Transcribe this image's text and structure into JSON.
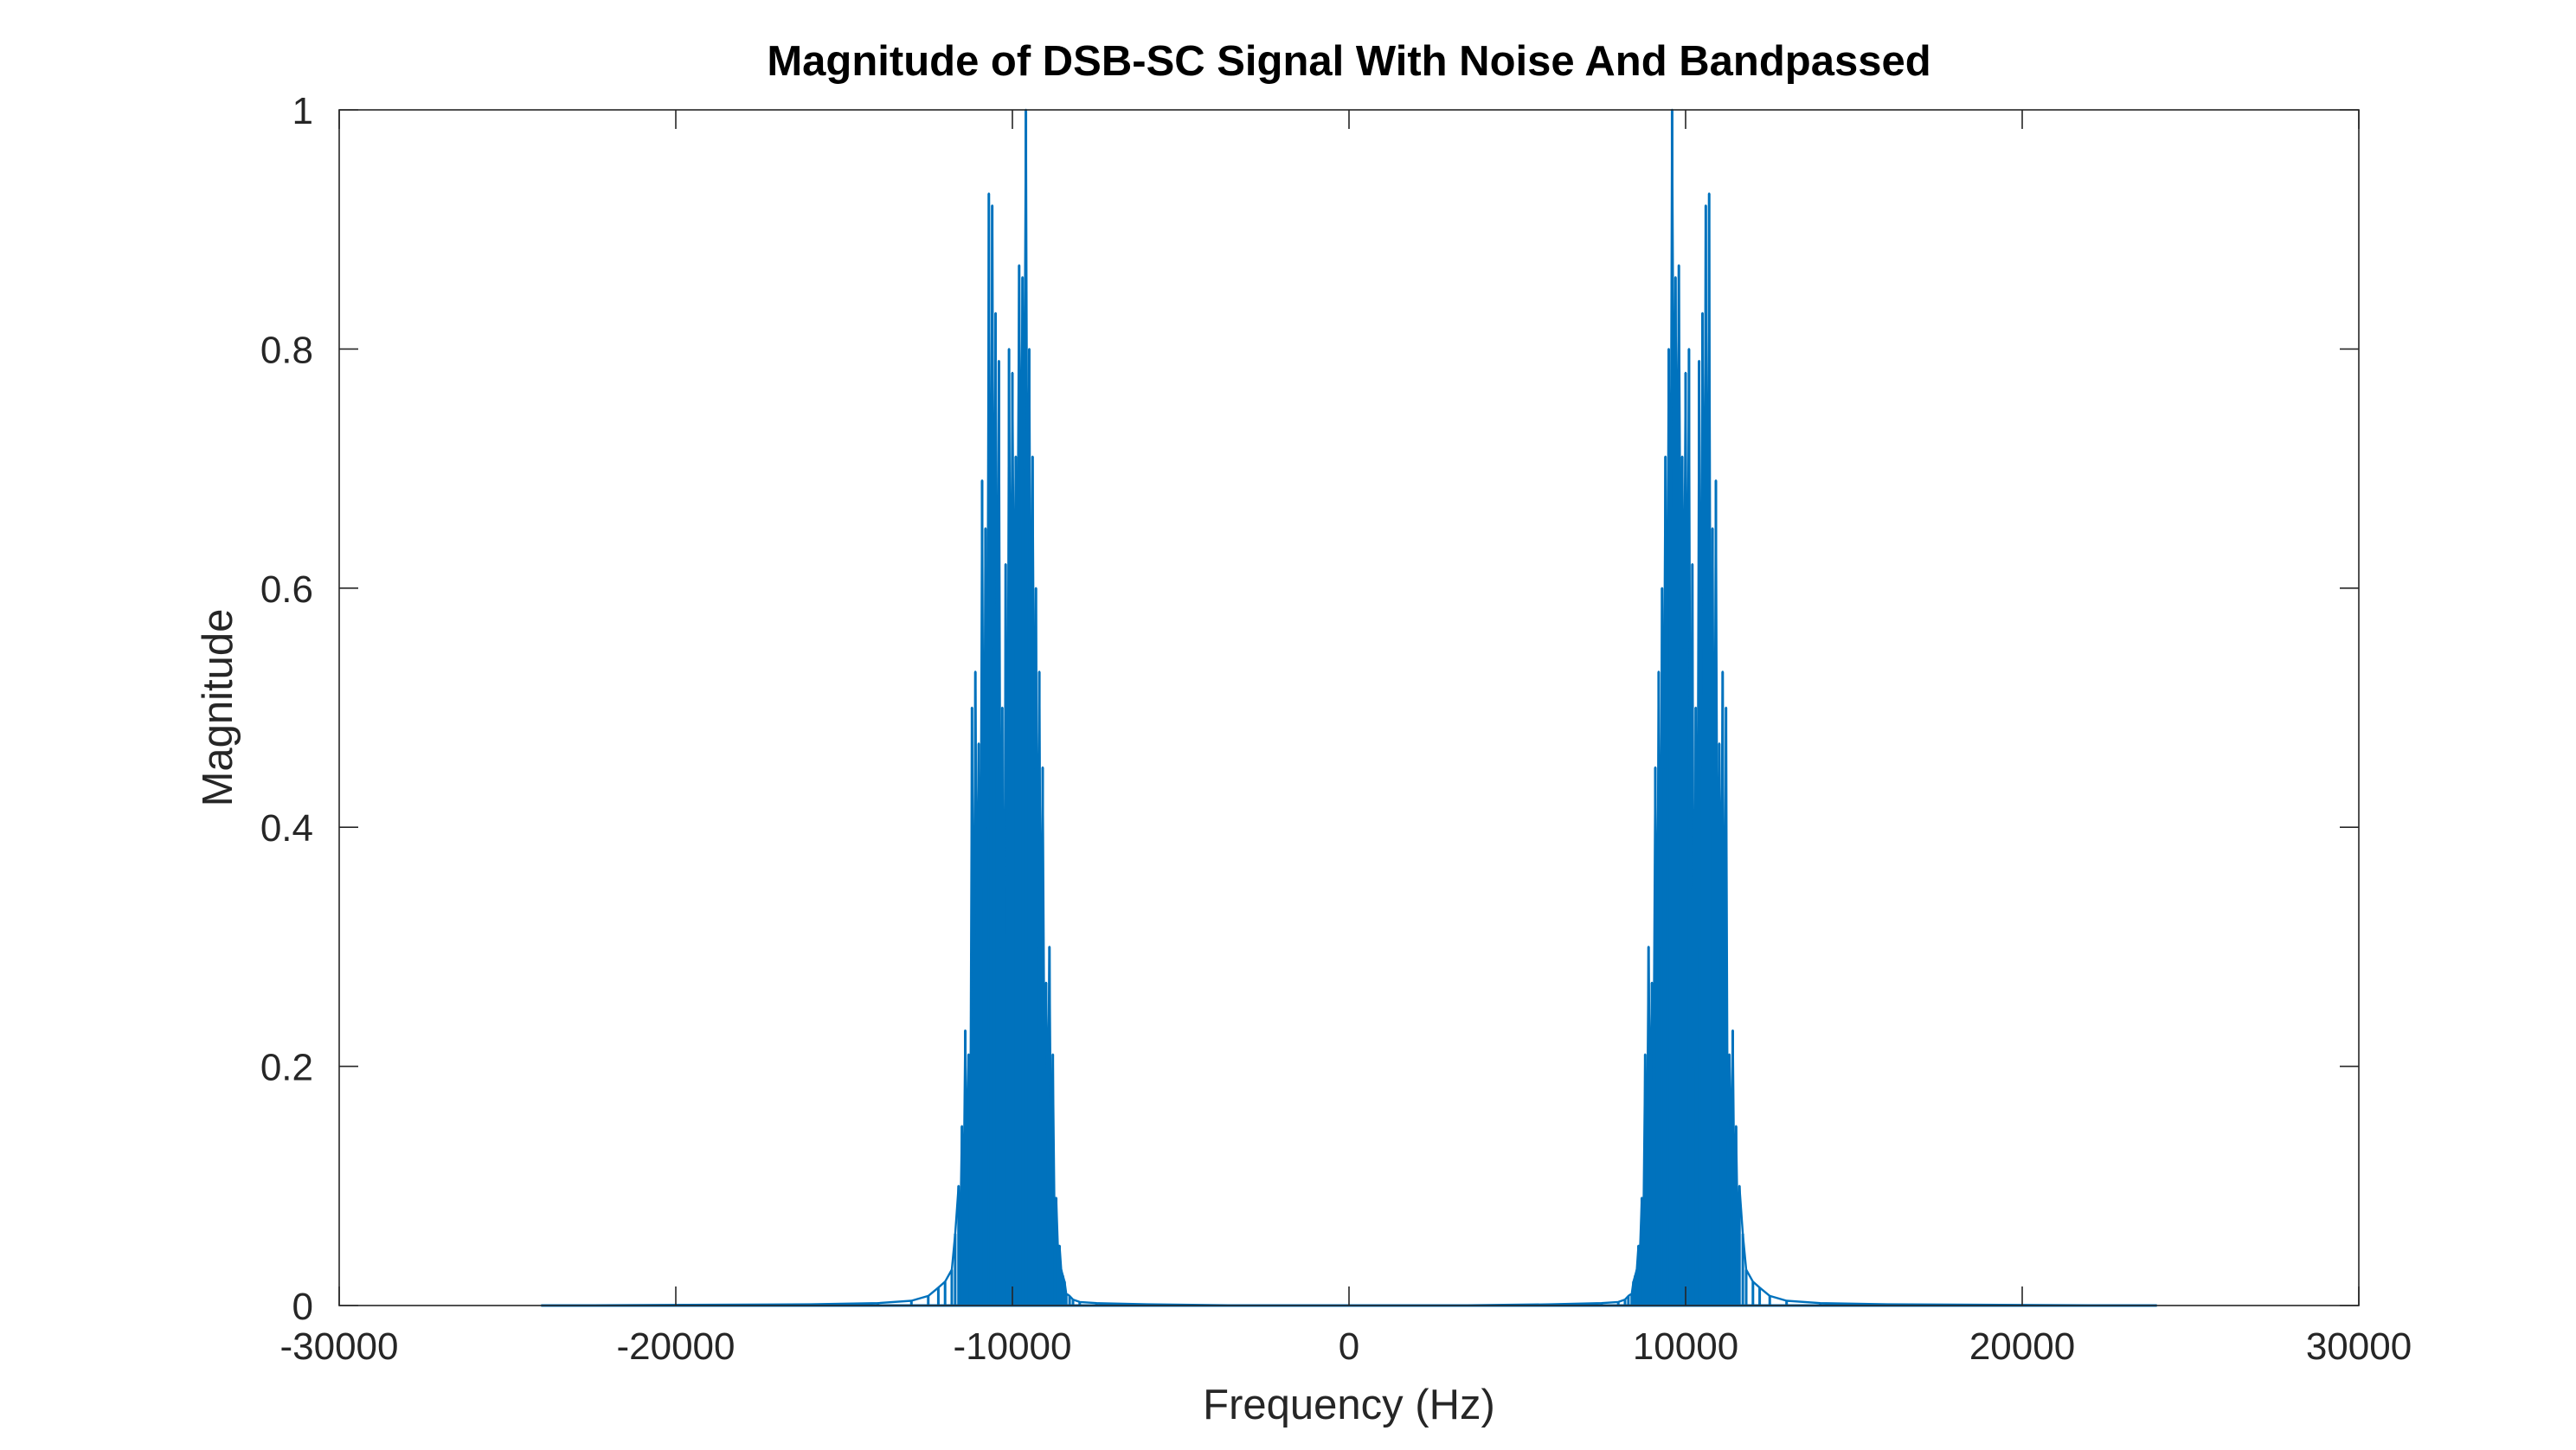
{
  "chart_data": {
    "type": "line",
    "title": "Magnitude of DSB-SC Signal With Noise And Bandpassed",
    "xlabel": "Frequency (Hz)",
    "ylabel": "Magnitude",
    "xlim": [
      -30000,
      30000
    ],
    "ylim": [
      0,
      1
    ],
    "xticks": [
      -30000,
      -20000,
      -10000,
      0,
      10000,
      20000,
      30000
    ],
    "xtick_labels": [
      "-30000",
      "-20000",
      "-10000",
      "0",
      "10000",
      "20000",
      "30000"
    ],
    "yticks": [
      0,
      0.2,
      0.4,
      0.6,
      0.8,
      1
    ],
    "ytick_labels": [
      "0",
      "0.2",
      "0.4",
      "0.6",
      "0.8",
      "1"
    ],
    "grid": false,
    "box": true,
    "series": [
      {
        "color": "#0072bd",
        "x": [
          -24000,
          -16000,
          -14000,
          -13000,
          -12500,
          -12200,
          -12000,
          -11800,
          -11700,
          -11600,
          -11550,
          -11500,
          -11450,
          -11400,
          -11350,
          -11300,
          -11250,
          -11200,
          -11150,
          -11100,
          -11050,
          -11000,
          -10950,
          -10900,
          -10850,
          -10800,
          -10750,
          -10700,
          -10650,
          -10600,
          -10550,
          -10500,
          -10450,
          -10400,
          -10350,
          -10300,
          -10250,
          -10200,
          -10150,
          -10100,
          -10050,
          -10000,
          -9950,
          -9900,
          -9850,
          -9800,
          -9750,
          -9700,
          -9650,
          -9600,
          -9550,
          -9500,
          -9450,
          -9400,
          -9350,
          -9300,
          -9250,
          -9200,
          -9150,
          -9100,
          -9050,
          -9000,
          -8950,
          -8900,
          -8850,
          -8800,
          -8750,
          -8700,
          -8650,
          -8600,
          -8550,
          -8500,
          -8450,
          -8400,
          -8300,
          -8200,
          -8000,
          -7500,
          -6000,
          -3000,
          0,
          3000,
          6000,
          7500,
          8000,
          8200,
          8300,
          8400,
          8450,
          8500,
          8550,
          8600,
          8650,
          8700,
          8750,
          8800,
          8850,
          8900,
          8950,
          9000,
          9050,
          9100,
          9150,
          9200,
          9250,
          9300,
          9350,
          9400,
          9450,
          9500,
          9550,
          9600,
          9650,
          9700,
          9750,
          9800,
          9850,
          9900,
          9950,
          10000,
          10050,
          10100,
          10150,
          10200,
          10250,
          10300,
          10350,
          10400,
          10450,
          10500,
          10550,
          10600,
          10650,
          10700,
          10750,
          10800,
          10850,
          10900,
          10950,
          11000,
          11050,
          11100,
          11150,
          11200,
          11250,
          11300,
          11350,
          11400,
          11450,
          11500,
          11550,
          11600,
          11700,
          11800,
          12000,
          12200,
          12500,
          13000,
          14000,
          16000,
          24000
        ],
        "y": [
          0.0,
          0.001,
          0.002,
          0.004,
          0.008,
          0.015,
          0.02,
          0.03,
          0.06,
          0.1,
          0.06,
          0.15,
          0.09,
          0.23,
          0.12,
          0.21,
          0.14,
          0.5,
          0.22,
          0.53,
          0.3,
          0.47,
          0.28,
          0.69,
          0.35,
          0.65,
          0.4,
          0.93,
          0.5,
          0.92,
          0.55,
          0.83,
          0.45,
          0.79,
          0.3,
          0.5,
          0.2,
          0.62,
          0.35,
          0.8,
          0.5,
          0.78,
          0.55,
          0.71,
          0.6,
          0.87,
          0.65,
          0.86,
          0.7,
          1.0,
          0.6,
          0.8,
          0.5,
          0.71,
          0.45,
          0.6,
          0.3,
          0.53,
          0.25,
          0.45,
          0.2,
          0.27,
          0.15,
          0.3,
          0.12,
          0.21,
          0.08,
          0.09,
          0.05,
          0.05,
          0.03,
          0.025,
          0.02,
          0.01,
          0.008,
          0.005,
          0.003,
          0.002,
          0.001,
          0.0,
          0.0,
          0.0,
          0.001,
          0.002,
          0.003,
          0.005,
          0.008,
          0.01,
          0.02,
          0.025,
          0.03,
          0.05,
          0.05,
          0.09,
          0.08,
          0.21,
          0.12,
          0.3,
          0.15,
          0.27,
          0.2,
          0.45,
          0.25,
          0.53,
          0.3,
          0.6,
          0.45,
          0.71,
          0.5,
          0.8,
          0.6,
          1.0,
          0.7,
          0.86,
          0.65,
          0.87,
          0.6,
          0.71,
          0.55,
          0.78,
          0.5,
          0.8,
          0.35,
          0.62,
          0.2,
          0.5,
          0.3,
          0.79,
          0.45,
          0.83,
          0.55,
          0.92,
          0.5,
          0.93,
          0.4,
          0.65,
          0.35,
          0.69,
          0.28,
          0.47,
          0.3,
          0.53,
          0.22,
          0.5,
          0.14,
          0.21,
          0.12,
          0.23,
          0.09,
          0.15,
          0.06,
          0.1,
          0.06,
          0.03,
          0.02,
          0.015,
          0.008,
          0.004,
          0.002,
          0.001,
          0.0
        ]
      }
    ]
  }
}
